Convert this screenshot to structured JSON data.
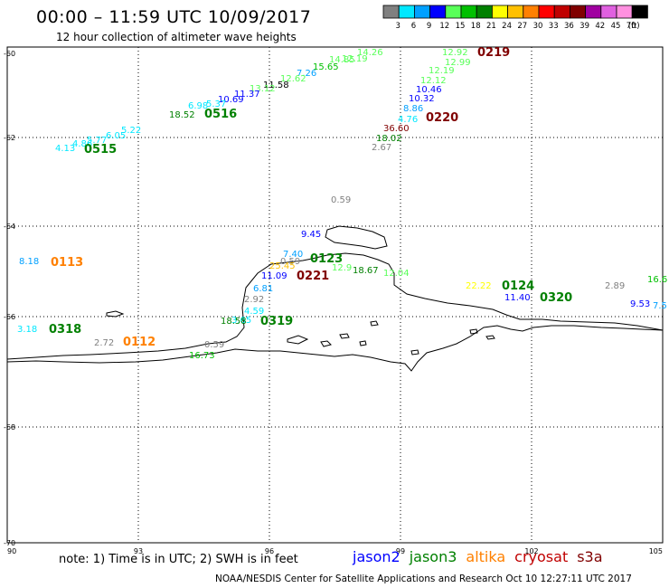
{
  "header": {
    "title": "00:00 – 11:59 UTC 10/09/2017",
    "subtitle": "12 hour collection of altimeter wave heights"
  },
  "colorbar": {
    "unit": "(ft)",
    "bins": [
      {
        "label": "3",
        "color": "#808080"
      },
      {
        "label": "6",
        "color": "#00e8ff"
      },
      {
        "label": "9",
        "color": "#00a0ff"
      },
      {
        "label": "12",
        "color": "#0000ff"
      },
      {
        "label": "15",
        "color": "#58ff58"
      },
      {
        "label": "18",
        "color": "#00c000"
      },
      {
        "label": "21",
        "color": "#008000"
      },
      {
        "label": "24",
        "color": "#ffff00"
      },
      {
        "label": "27",
        "color": "#ffc000"
      },
      {
        "label": "30",
        "color": "#ff8000"
      },
      {
        "label": "33",
        "color": "#ff0000"
      },
      {
        "label": "36",
        "color": "#c00000"
      },
      {
        "label": "39",
        "color": "#800000"
      },
      {
        "label": "42",
        "color": "#a000a0"
      },
      {
        "label": "45",
        "color": "#e060e0"
      },
      {
        "label": "70",
        "color": "#ff90e0"
      },
      {
        "label": "",
        "color": "#000000"
      }
    ]
  },
  "axes": {
    "lon_ticks": [
      "90",
      "93",
      "96",
      "99",
      "102",
      "105"
    ],
    "lat_ticks": [
      "-60",
      "-62",
      "-64",
      "-66",
      "-68",
      "-70"
    ]
  },
  "observations": [
    {
      "text": "14.26",
      "color": "#58ff58"
    },
    {
      "text": "12.19",
      "color": "#58ff58"
    },
    {
      "text": "14.85",
      "color": "#58ff58"
    },
    {
      "text": "15.65",
      "color": "#00c000"
    },
    {
      "text": "7.26",
      "color": "#00a0ff"
    },
    {
      "text": "12.62",
      "color": "#58ff58"
    },
    {
      "text": "11.58",
      "color": "#000000"
    },
    {
      "text": "13.12",
      "color": "#58ff58"
    },
    {
      "text": "11.37",
      "color": "#0000ff"
    },
    {
      "text": "10.69",
      "color": "#0000ff"
    },
    {
      "text": "5.37",
      "color": "#00e8ff"
    },
    {
      "text": "6.98",
      "color": "#00e8ff"
    },
    {
      "text": "18.52",
      "color": "#008000"
    },
    {
      "text": "5.22",
      "color": "#00e8ff"
    },
    {
      "text": "6.05",
      "color": "#00e8ff"
    },
    {
      "text": "5.77",
      "color": "#00e8ff"
    },
    {
      "text": "4.86",
      "color": "#00e8ff"
    },
    {
      "text": "4.13",
      "color": "#00e8ff"
    },
    {
      "text": "12.92",
      "color": "#58ff58"
    },
    {
      "text": "12.99",
      "color": "#58ff58"
    },
    {
      "text": "12.19",
      "color": "#58ff58"
    },
    {
      "text": "12.12",
      "color": "#58ff58"
    },
    {
      "text": "10.46",
      "color": "#0000ff"
    },
    {
      "text": "10.32",
      "color": "#0000ff"
    },
    {
      "text": "8.86",
      "color": "#00a0ff"
    },
    {
      "text": "4.76",
      "color": "#00e8ff"
    },
    {
      "text": "36.60",
      "color": "#800000"
    },
    {
      "text": "18.02",
      "color": "#008000"
    },
    {
      "text": "2.67",
      "color": "#808080"
    },
    {
      "text": "0.59",
      "color": "#808080"
    },
    {
      "text": "9.45",
      "color": "#0000ff"
    },
    {
      "text": "7.40",
      "color": "#00a0ff"
    },
    {
      "text": "0.59",
      "color": "#808080"
    },
    {
      "text": "25.45",
      "color": "#ffc000"
    },
    {
      "text": "11.09",
      "color": "#0000ff"
    },
    {
      "text": "12.9",
      "color": "#58ff58"
    },
    {
      "text": "18.67",
      "color": "#008000"
    },
    {
      "text": "12.04",
      "color": "#58ff58"
    },
    {
      "text": "8.18",
      "color": "#00a0ff"
    },
    {
      "text": "6.81",
      "color": "#00a0ff"
    },
    {
      "text": "2.92",
      "color": "#808080"
    },
    {
      "text": "4.59",
      "color": "#00e8ff"
    },
    {
      "text": "3.65",
      "color": "#00e8ff"
    },
    {
      "text": "18.58",
      "color": "#008000"
    },
    {
      "text": "3.18",
      "color": "#00e8ff"
    },
    {
      "text": "2.72",
      "color": "#808080"
    },
    {
      "text": "0.59",
      "color": "#808080"
    },
    {
      "text": "16.73",
      "color": "#00c000"
    },
    {
      "text": "22.22",
      "color": "#ffff00"
    },
    {
      "text": "11.40",
      "color": "#0000ff"
    },
    {
      "text": "2.89",
      "color": "#808080"
    },
    {
      "text": "16.6",
      "color": "#00c000"
    },
    {
      "text": "9.53",
      "color": "#0000ff"
    },
    {
      "text": "7.5",
      "color": "#00a0ff"
    }
  ],
  "pass_labels": [
    {
      "text": "0219",
      "color": "#800000"
    },
    {
      "text": "0516",
      "color": "#008000"
    },
    {
      "text": "0515",
      "color": "#008000"
    },
    {
      "text": "0220",
      "color": "#800000"
    },
    {
      "text": "0113",
      "color": "#ff8000"
    },
    {
      "text": "0123",
      "color": "#008000"
    },
    {
      "text": "0221",
      "color": "#800000"
    },
    {
      "text": "0318",
      "color": "#008000"
    },
    {
      "text": "0319",
      "color": "#008000"
    },
    {
      "text": "0112",
      "color": "#ff8000"
    },
    {
      "text": "0124",
      "color": "#008000"
    },
    {
      "text": "0320",
      "color": "#008000"
    }
  ],
  "footer": {
    "note": "note: 1) Time is in UTC; 2) SWH is in feet",
    "satellites": [
      {
        "name": "jason2",
        "color": "#0000ff"
      },
      {
        "name": "jason3",
        "color": "#008000"
      },
      {
        "name": "altika",
        "color": "#ff8000"
      },
      {
        "name": "cryosat",
        "color": "#c00000"
      },
      {
        "name": "s3a",
        "color": "#800000"
      }
    ],
    "credit": "NOAA/NESDIS Center for Satellite Applications and Research     Oct 10 12:27:11 UTC 2017"
  }
}
